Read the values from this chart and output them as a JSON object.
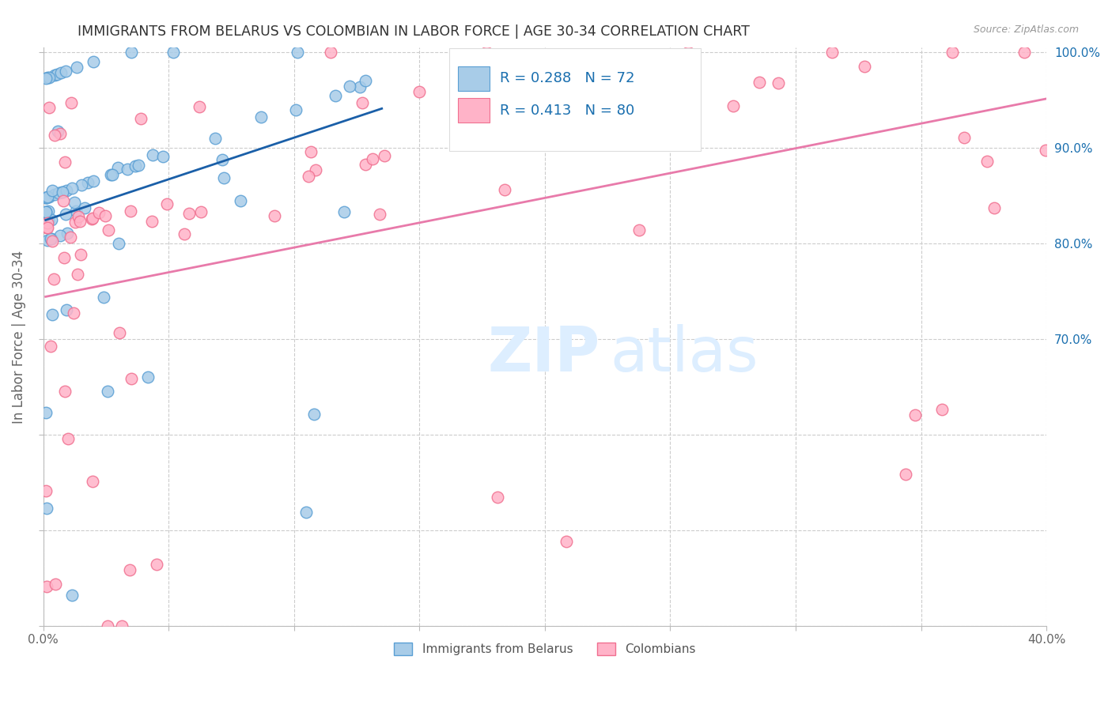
{
  "title": "IMMIGRANTS FROM BELARUS VS COLOMBIAN IN LABOR FORCE | AGE 30-34 CORRELATION CHART",
  "source": "Source: ZipAtlas.com",
  "ylabel": "In Labor Force | Age 30-34",
  "xlim": [
    0.0,
    0.4
  ],
  "ylim": [
    0.4,
    1.005
  ],
  "xtick_positions": [
    0.0,
    0.05,
    0.1,
    0.15,
    0.2,
    0.25,
    0.3,
    0.35,
    0.4
  ],
  "xtick_labels": [
    "0.0%",
    "",
    "",
    "",
    "",
    "",
    "",
    "",
    "40.0%"
  ],
  "ytick_positions": [
    0.4,
    0.5,
    0.6,
    0.7,
    0.8,
    0.9,
    1.0
  ],
  "ytick_labels_right": [
    "",
    "",
    "",
    "70.0%",
    "80.0%",
    "90.0%",
    "100.0%"
  ],
  "blue_face": "#a8cce8",
  "blue_edge": "#5a9fd4",
  "pink_face": "#ffb3c8",
  "pink_edge": "#f07090",
  "blue_line": "#1a5fa8",
  "pink_line": "#e87aaa",
  "r_blue": 0.288,
  "n_blue": 72,
  "r_pink": 0.413,
  "n_pink": 80,
  "legend_text_color": "#1a6faf",
  "title_color": "#333333",
  "source_color": "#999999",
  "axis_label_color": "#666666",
  "tick_label_color": "#1a6faf",
  "grid_color": "#cccccc",
  "watermark_color": "#ddeeff"
}
